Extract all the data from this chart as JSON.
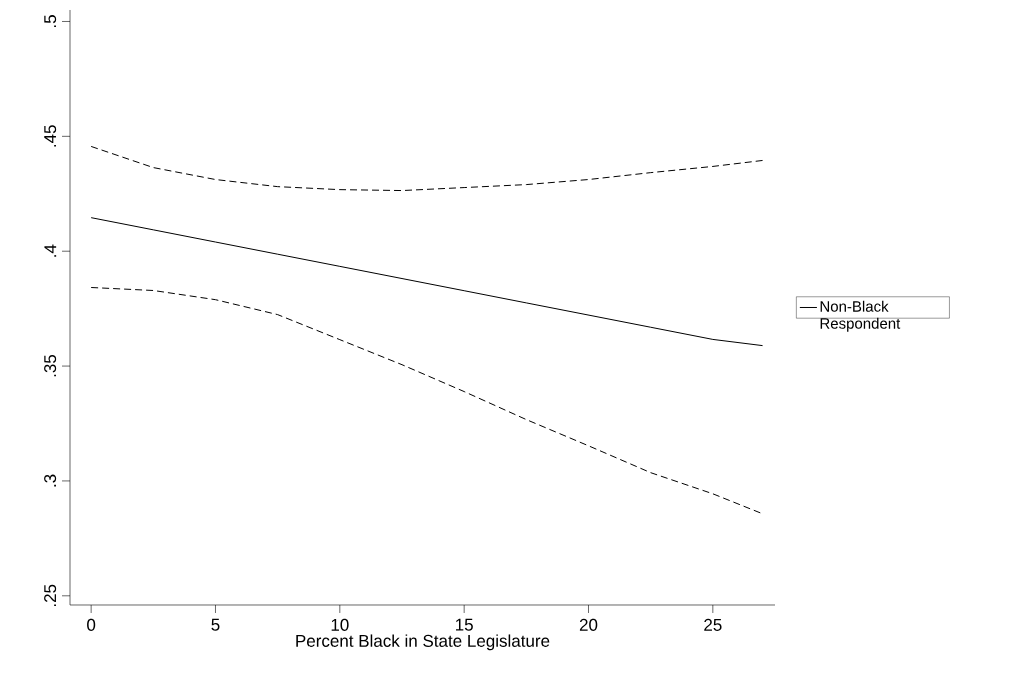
{
  "chart_data": {
    "type": "line",
    "xlabel": "Percent Black in State Legislature",
    "x": [
      0,
      2.5,
      5,
      7.5,
      10,
      12.5,
      15,
      17.5,
      20,
      22.5,
      25,
      27
    ],
    "series": [
      {
        "name": "Non-Black Respondent",
        "color": "#000000",
        "line_style": "solid",
        "values": [
          0.4146,
          0.4093,
          0.404,
          0.3987,
          0.3934,
          0.3881,
          0.3828,
          0.3775,
          0.3722,
          0.3669,
          0.3616,
          0.3589
        ]
      },
      {
        "color": "#000000",
        "line_style": "dashed",
        "values": [
          0.4456,
          0.4364,
          0.4312,
          0.4281,
          0.4268,
          0.4264,
          0.4277,
          0.429,
          0.4312,
          0.4342,
          0.4369,
          0.4395
        ]
      },
      {
        "color": "#000000",
        "line_style": "dashed",
        "values": [
          0.3842,
          0.3829,
          0.3789,
          0.3724,
          0.3615,
          0.3506,
          0.3389,
          0.3267,
          0.3153,
          0.3036,
          0.2944,
          0.2857
        ]
      }
    ],
    "xlim": [
      -0.85,
      27.5
    ],
    "ylim": [
      0.246,
      0.505
    ],
    "xticks": [
      0,
      5,
      10,
      15,
      20,
      25
    ],
    "yticks": [
      {
        "value": 0.25,
        "label": ".25"
      },
      {
        "value": 0.3,
        "label": ".3"
      },
      {
        "value": 0.35,
        "label": ".35"
      },
      {
        "value": 0.4,
        "label": ".4"
      },
      {
        "value": 0.45,
        "label": ".45"
      },
      {
        "value": 0.5,
        "label": ".5"
      }
    ],
    "grid": false,
    "legend": "right"
  }
}
